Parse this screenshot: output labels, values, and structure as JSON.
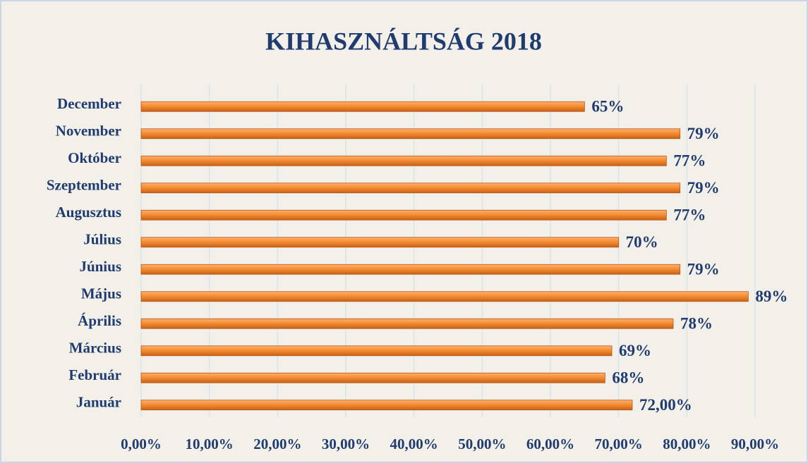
{
  "chart_data": {
    "type": "bar",
    "orientation": "horizontal",
    "title": "KIHASZNÁLTSÁG 2018",
    "categories": [
      "Január",
      "Február",
      "Március",
      "Április",
      "Május",
      "Június",
      "Július",
      "Augusztus",
      "Szeptember",
      "Október",
      "November",
      "December"
    ],
    "values": [
      72,
      68,
      69,
      78,
      89,
      79,
      70,
      77,
      79,
      77,
      79,
      65
    ],
    "value_labels": [
      "72,00%",
      "68%",
      "69%",
      "78%",
      "89%",
      "79%",
      "70%",
      "77%",
      "79%",
      "77%",
      "79%",
      "65%"
    ],
    "color": "#f28a2e",
    "xlim": [
      0,
      90
    ],
    "xticks": [
      {
        "value": 0,
        "label": "0,00%"
      },
      {
        "value": 10,
        "label": "10,00%"
      },
      {
        "value": 20,
        "label": "20,00%"
      },
      {
        "value": 30,
        "label": "30,00%"
      },
      {
        "value": 40,
        "label": "40,00%"
      },
      {
        "value": 50,
        "label": "50,00%"
      },
      {
        "value": 60,
        "label": "60,00%"
      },
      {
        "value": 70,
        "label": "70,00%"
      },
      {
        "value": 80,
        "label": "80,00%"
      },
      {
        "value": 90,
        "label": "90,00%"
      }
    ],
    "grid": true
  }
}
